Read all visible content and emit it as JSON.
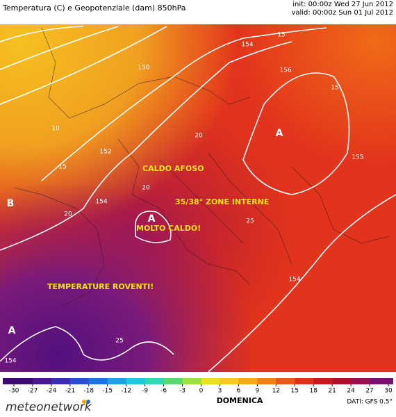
{
  "header": {
    "title": "Temperatura (C) e Geopotenziale (dam) 850hPa",
    "init": "init: 00:00z Wed 27 Jun 2012",
    "valid": "valid: 00:00z Sun 01 Jul 2012"
  },
  "annotations": [
    "CALDO AFOSO",
    "35/38° ZONE INTERNE",
    "MOLTO CALDO!",
    "TEMPERATURE ROVENTI!"
  ],
  "pressure_centers": [
    "A",
    "B",
    "A",
    "A"
  ],
  "geopotential_labels": [
    "150",
    "152",
    "154",
    "154",
    "156",
    "155",
    "154",
    "154"
  ],
  "temperature_labels": [
    "10",
    "15",
    "15",
    "15",
    "20",
    "20",
    "20",
    "25",
    "25"
  ],
  "colorbar": {
    "ticks": [
      -30,
      -27,
      -24,
      -21,
      -18,
      -15,
      -12,
      -9,
      -6,
      -3,
      0,
      3,
      6,
      9,
      12,
      15,
      18,
      21,
      24,
      27,
      30
    ],
    "colors": [
      "#3b0a6e",
      "#4b1890",
      "#3a2fb0",
      "#2c4fd0",
      "#1f75e0",
      "#1da0e8",
      "#20c6e0",
      "#2ed8b0",
      "#5ad870",
      "#9ae040",
      "#e8e020",
      "#f8c820",
      "#f8a818",
      "#f08018",
      "#e85818",
      "#e03018",
      "#c81820",
      "#b0102c",
      "#9a1050",
      "#7a1070"
    ]
  },
  "footer": {
    "brand": "meteonetwork",
    "day": "DOMENICA",
    "source": "DATI: GFS 0.5°"
  }
}
